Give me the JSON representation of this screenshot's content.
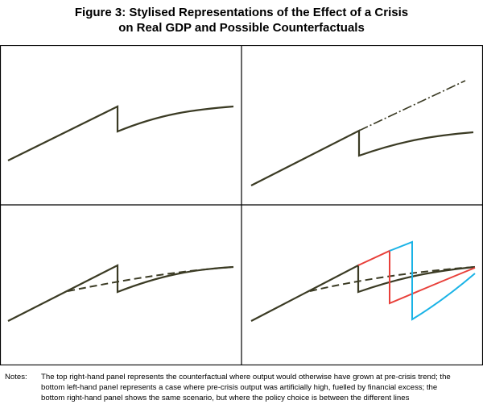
{
  "title": {
    "line1": "Figure 3: Stylised Representations of the Effect of a Crisis",
    "line2": "on Real GDP and Possible Counterfactuals"
  },
  "notes": {
    "label": "Notes:",
    "text": "The top right-hand panel represents the counterfactual where output would otherwise have grown at pre-crisis trend; the bottom left-hand panel represents a case where pre-crisis output was artificially high, fuelled by financial excess; the bottom right-hand panel shows the same scenario, but where the policy choice is between the different lines"
  },
  "colors": {
    "actual_output": "#3b3b24",
    "red_path": "#e8403a",
    "blue_path": "#1ab3e6",
    "frame": "#000000"
  }
}
